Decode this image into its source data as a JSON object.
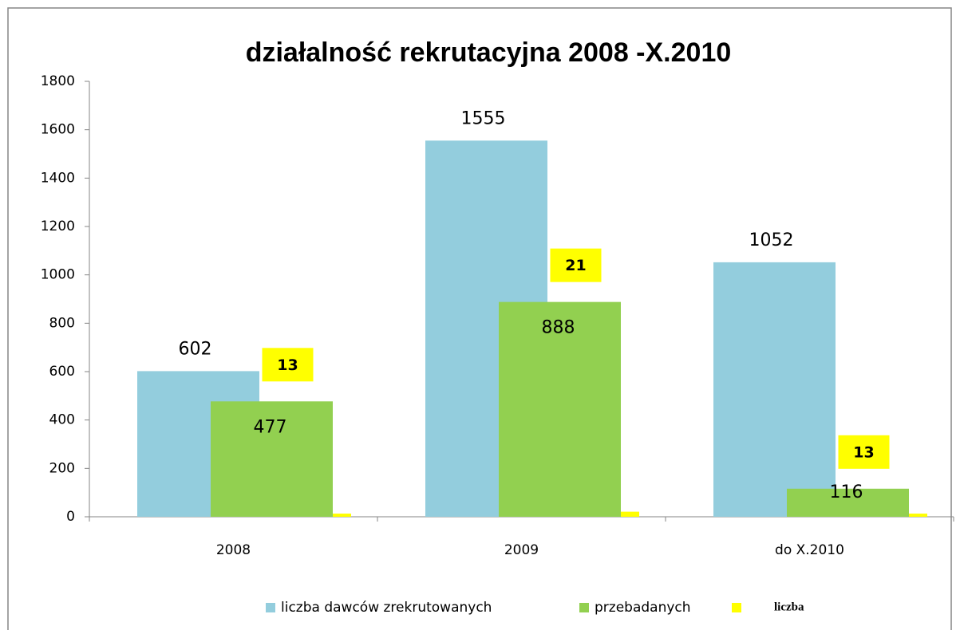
{
  "chart_data": {
    "type": "bar",
    "title": "działalność rekrutacyjna 2008 -X.2010",
    "categories": [
      "2008",
      "2009",
      "do X.2010"
    ],
    "series": [
      {
        "name": "liczba dawców zrekrutowanych",
        "color": "#93cddd",
        "values": [
          602,
          1555,
          1052
        ]
      },
      {
        "name": "przebadanych",
        "color": "#92d050",
        "values": [
          477,
          888,
          116
        ]
      },
      {
        "name": "liczba",
        "color": "#ffff00",
        "values": [
          13,
          21,
          13
        ]
      }
    ],
    "ylim": [
      0,
      1800
    ],
    "yticks": [
      0,
      200,
      400,
      600,
      800,
      1000,
      1200,
      1400,
      1600,
      1800
    ],
    "grid": false,
    "legend": "bottom"
  }
}
